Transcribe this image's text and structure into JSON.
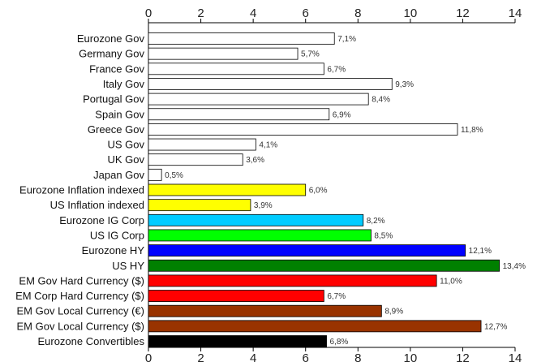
{
  "chart_data": {
    "type": "bar",
    "orientation": "horizontal",
    "title": "",
    "xlabel": "",
    "ylabel": "",
    "xlim": [
      0,
      14
    ],
    "x_ticks": [
      0,
      2,
      4,
      6,
      8,
      10,
      12,
      14
    ],
    "x_axis_position": "top and bottom",
    "grid": false,
    "legend": "none",
    "categories": [
      "Eurozone Gov",
      "Germany Gov",
      "France Gov",
      "Italy Gov",
      "Portugal Gov",
      "Spain Gov",
      "Greece Gov",
      "US Gov",
      "UK Gov",
      "Japan Gov",
      "Eurozone Inflation indexed",
      "US Inflation indexed",
      "Eurozone IG Corp",
      "US IG Corp",
      "Eurozone HY",
      "US HY",
      "EM Gov Hard Currency ($)",
      "EM Corp Hard Currency ($)",
      "EM Gov Local Currency (€)",
      "EM Gov Local Currency ($)",
      "Eurozone Convertibles"
    ],
    "values": [
      7.1,
      5.7,
      6.7,
      9.3,
      8.4,
      6.9,
      11.8,
      4.1,
      3.6,
      0.5,
      6.0,
      3.9,
      8.2,
      8.5,
      12.1,
      13.4,
      11.0,
      6.7,
      8.9,
      12.7,
      6.8
    ],
    "value_labels": [
      "7,1%",
      "5,7%",
      "6,7%",
      "9,3%",
      "8,4%",
      "6,9%",
      "11,8%",
      "4,1%",
      "3,6%",
      "0,5%",
      "6,0%",
      "3,9%",
      "8,2%",
      "8,5%",
      "12,1%",
      "13,4%",
      "11,0%",
      "6,7%",
      "8,9%",
      "12,7%",
      "6,8%"
    ],
    "colors": [
      "#ffffff",
      "#ffffff",
      "#ffffff",
      "#ffffff",
      "#ffffff",
      "#ffffff",
      "#ffffff",
      "#ffffff",
      "#ffffff",
      "#ffffff",
      "#ffff00",
      "#ffff00",
      "#00ccff",
      "#00ff00",
      "#0000ff",
      "#008000",
      "#ff0000",
      "#ff0000",
      "#993300",
      "#993300",
      "#000000"
    ],
    "bar_outline": "#000000"
  }
}
